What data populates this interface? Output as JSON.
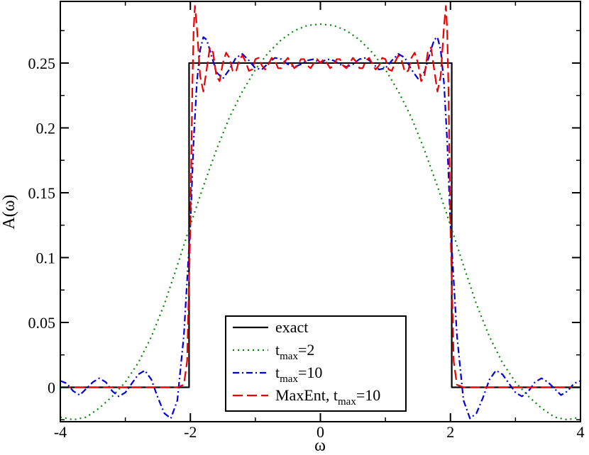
{
  "chart_data": {
    "type": "line",
    "xlabel": "ω",
    "ylabel": "A(ω)",
    "xlim": [
      -4,
      4
    ],
    "ylim": [
      -0.0265,
      0.2975
    ],
    "xticks": [
      -4,
      -2,
      0,
      2,
      4
    ],
    "xtick_labels": [
      "-4",
      "-2",
      "0",
      "2",
      "4"
    ],
    "yticks": [
      0,
      0.05,
      0.1,
      0.15,
      0.2,
      0.25
    ],
    "ytick_labels": [
      "0",
      "0.05",
      "0.1",
      "0.15",
      "0.2",
      "0.25"
    ],
    "grid": false,
    "legend_position": "bottom-center",
    "series": [
      {
        "name": "exact",
        "legend": {
          "main": "exact",
          "sub": "",
          "rest": ""
        },
        "color": "#000000",
        "dash": "solid",
        "x": [
          -4,
          -2.02,
          -2.02,
          -2,
          -2,
          2,
          2,
          2.02,
          2.02,
          4
        ],
        "y": [
          0,
          0,
          0.25,
          0.25,
          0.25,
          0.25,
          0.25,
          0.25,
          0,
          0
        ]
      },
      {
        "name": "t_max=2",
        "legend": {
          "main": "t",
          "sub": "max",
          "rest": "=2"
        },
        "color": "#008800",
        "dash": "dot",
        "x": [
          -4,
          -3.8,
          -3.6,
          -3.4,
          -3.2,
          -3.0,
          -2.8,
          -2.6,
          -2.4,
          -2.2,
          -2.0,
          -1.8,
          -1.6,
          -1.4,
          -1.2,
          -1.0,
          -0.8,
          -0.6,
          -0.4,
          -0.2,
          0,
          0.2,
          0.4,
          0.6,
          0.8,
          1.0,
          1.2,
          1.4,
          1.6,
          1.8,
          2.0,
          2.2,
          2.4,
          2.6,
          2.8,
          3.0,
          3.2,
          3.4,
          3.6,
          3.8,
          4
        ],
        "y": [
          -0.023,
          -0.025,
          -0.023,
          -0.016,
          -0.007,
          0.004,
          0.019,
          0.039,
          0.064,
          0.094,
          0.125,
          0.155,
          0.183,
          0.208,
          0.228,
          0.245,
          0.258,
          0.268,
          0.275,
          0.279,
          0.28,
          0.279,
          0.275,
          0.268,
          0.258,
          0.245,
          0.228,
          0.208,
          0.183,
          0.155,
          0.125,
          0.094,
          0.064,
          0.039,
          0.019,
          0.004,
          -0.007,
          -0.016,
          -0.023,
          -0.025,
          -0.023
        ]
      },
      {
        "name": "t_max=10",
        "legend": {
          "main": "t",
          "sub": "max",
          "rest": "=10"
        },
        "color": "#0000dd",
        "dash": "dashdot",
        "x": [
          -4,
          -3.9,
          -3.8,
          -3.7,
          -3.6,
          -3.5,
          -3.4,
          -3.3,
          -3.2,
          -3.1,
          -3.0,
          -2.9,
          -2.8,
          -2.7,
          -2.6,
          -2.5,
          -2.4,
          -2.3,
          -2.2,
          -2.1,
          -2.0,
          -1.95,
          -1.9,
          -1.85,
          -1.8,
          -1.75,
          -1.7,
          -1.6,
          -1.5,
          -1.4,
          -1.3,
          -1.2,
          -1.1,
          -1.0,
          -0.9,
          -0.8,
          -0.7,
          -0.6,
          -0.5,
          -0.4,
          -0.3,
          -0.2,
          -0.1,
          0,
          0.1,
          0.2,
          0.3,
          0.4,
          0.5,
          0.6,
          0.7,
          0.8,
          0.9,
          1.0,
          1.1,
          1.2,
          1.3,
          1.4,
          1.5,
          1.6,
          1.7,
          1.75,
          1.8,
          1.85,
          1.9,
          1.95,
          2.0,
          2.1,
          2.2,
          2.3,
          2.4,
          2.5,
          2.6,
          2.7,
          2.8,
          2.9,
          3.0,
          3.1,
          3.2,
          3.3,
          3.4,
          3.5,
          3.6,
          3.7,
          3.8,
          3.9,
          4
        ],
        "y": [
          0.005,
          0.003,
          -0.003,
          -0.006,
          -0.001,
          0.004,
          0.007,
          0.004,
          -0.003,
          -0.007,
          -0.004,
          0.003,
          0.01,
          0.013,
          0.006,
          -0.008,
          -0.02,
          -0.024,
          -0.01,
          0.04,
          0.125,
          0.19,
          0.235,
          0.26,
          0.27,
          0.268,
          0.26,
          0.243,
          0.238,
          0.245,
          0.254,
          0.257,
          0.252,
          0.246,
          0.245,
          0.25,
          0.254,
          0.253,
          0.249,
          0.247,
          0.249,
          0.252,
          0.253,
          0.25,
          0.253,
          0.252,
          0.249,
          0.247,
          0.249,
          0.253,
          0.254,
          0.25,
          0.245,
          0.246,
          0.252,
          0.257,
          0.254,
          0.245,
          0.238,
          0.243,
          0.26,
          0.268,
          0.27,
          0.26,
          0.235,
          0.19,
          0.125,
          0.04,
          -0.01,
          -0.024,
          -0.02,
          -0.008,
          0.006,
          0.013,
          0.01,
          0.003,
          -0.004,
          -0.007,
          -0.003,
          0.004,
          0.007,
          0.004,
          -0.001,
          -0.006,
          -0.003,
          0.003,
          0.005
        ]
      },
      {
        "name": "MaxEnt, t_max=10",
        "legend": {
          "main": "MaxEnt, t",
          "sub": "max",
          "rest": "=10"
        },
        "color": "#ee0000",
        "dash": "dash",
        "x": [
          -4,
          -2.5,
          -2.2,
          -2.1,
          -2.05,
          -2.0,
          -1.97,
          -1.95,
          -1.93,
          -1.9,
          -1.85,
          -1.8,
          -1.75,
          -1.7,
          -1.65,
          -1.6,
          -1.55,
          -1.5,
          -1.45,
          -1.4,
          -1.35,
          -1.3,
          -1.25,
          -1.2,
          -1.15,
          -1.1,
          -1.05,
          -1.0,
          -0.95,
          -0.9,
          -0.85,
          -0.8,
          -0.75,
          -0.7,
          -0.65,
          -0.6,
          -0.55,
          -0.5,
          -0.45,
          -0.4,
          -0.35,
          -0.3,
          -0.25,
          -0.2,
          -0.15,
          -0.1,
          -0.05,
          0,
          0.05,
          0.1,
          0.15,
          0.2,
          0.25,
          0.3,
          0.35,
          0.4,
          0.45,
          0.5,
          0.55,
          0.6,
          0.65,
          0.7,
          0.75,
          0.8,
          0.85,
          0.9,
          0.95,
          1.0,
          1.05,
          1.1,
          1.15,
          1.2,
          1.25,
          1.3,
          1.35,
          1.4,
          1.45,
          1.5,
          1.55,
          1.6,
          1.65,
          1.7,
          1.75,
          1.8,
          1.85,
          1.9,
          1.93,
          1.95,
          1.97,
          2.0,
          2.05,
          2.1,
          2.2,
          2.5,
          4
        ],
        "y": [
          0,
          0,
          0,
          0.002,
          0.02,
          0.125,
          0.23,
          0.275,
          0.294,
          0.278,
          0.24,
          0.228,
          0.245,
          0.262,
          0.258,
          0.24,
          0.236,
          0.25,
          0.258,
          0.254,
          0.244,
          0.243,
          0.252,
          0.256,
          0.251,
          0.244,
          0.245,
          0.253,
          0.254,
          0.248,
          0.245,
          0.249,
          0.254,
          0.252,
          0.246,
          0.246,
          0.251,
          0.254,
          0.25,
          0.246,
          0.248,
          0.253,
          0.253,
          0.248,
          0.246,
          0.25,
          0.253,
          0.25,
          0.253,
          0.25,
          0.246,
          0.248,
          0.253,
          0.253,
          0.248,
          0.246,
          0.25,
          0.254,
          0.251,
          0.246,
          0.246,
          0.252,
          0.254,
          0.249,
          0.245,
          0.248,
          0.254,
          0.253,
          0.245,
          0.244,
          0.251,
          0.256,
          0.252,
          0.243,
          0.244,
          0.254,
          0.258,
          0.25,
          0.236,
          0.24,
          0.258,
          0.262,
          0.245,
          0.228,
          0.24,
          0.278,
          0.294,
          0.275,
          0.23,
          0.125,
          0.02,
          0.002,
          0,
          0,
          0
        ]
      }
    ]
  }
}
